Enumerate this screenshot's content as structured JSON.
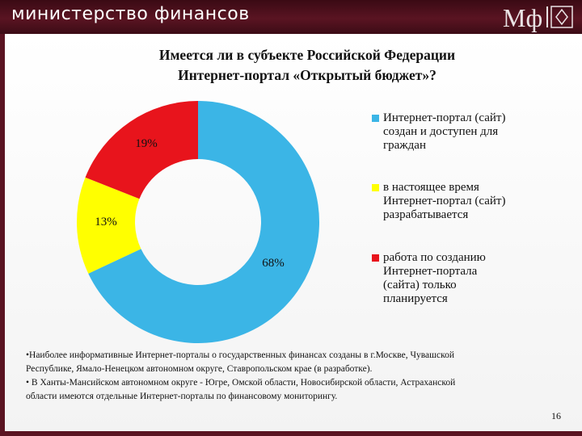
{
  "header": {
    "org_name": "министерство финансов",
    "logo_text": "Мф"
  },
  "colors": {
    "brand": "#5a1422",
    "accent_blue": "#3bb5e6",
    "accent_yellow": "#ffff00",
    "accent_red": "#e8141c"
  },
  "chart_data": {
    "type": "pie",
    "variant": "donut",
    "title": "Имеется ли в субъекте Российской Федерации Интернет-портал «Открытый бюджет»?",
    "title_lines": [
      "Имеется ли в субъекте Российской Федерации",
      "Интернет-портал «Открытый бюджет»?"
    ],
    "slices": [
      {
        "label_lines": [
          "Интернет-портал (сайт)",
          "создан и доступен для",
          "граждан"
        ],
        "value": 68,
        "value_label": "68%",
        "color": "#3bb5e6"
      },
      {
        "label_lines": [
          "в настоящее время",
          "Интернет-портал (сайт)",
          "разрабатывается"
        ],
        "value": 13,
        "value_label": "13%",
        "color": "#ffff00"
      },
      {
        "label_lines": [
          "работа по созданию",
          "Интернет-портала",
          "(сайта) только",
          "планируется"
        ],
        "value": 19,
        "value_label": "19%",
        "color": "#e8141c"
      }
    ],
    "start_position": "top",
    "direction": "clockwise",
    "legend_position": "right"
  },
  "notes": {
    "line1a": "•Наиболее информативные Интернет-порталы о государственных финансах созданы в г.Москве, Чувашской",
    "line1b": "Республике, Ямало-Ненецком автономном округе, Ставропольском крае (в разработке).",
    "line2a": "• В Ханты-Мансийском автономном округе - Югре, Омской области, Новосибирской области, Астраханской",
    "line2b": "области имеются отдельные Интернет-порталы по финансовому мониторингу."
  },
  "page_number": "16"
}
